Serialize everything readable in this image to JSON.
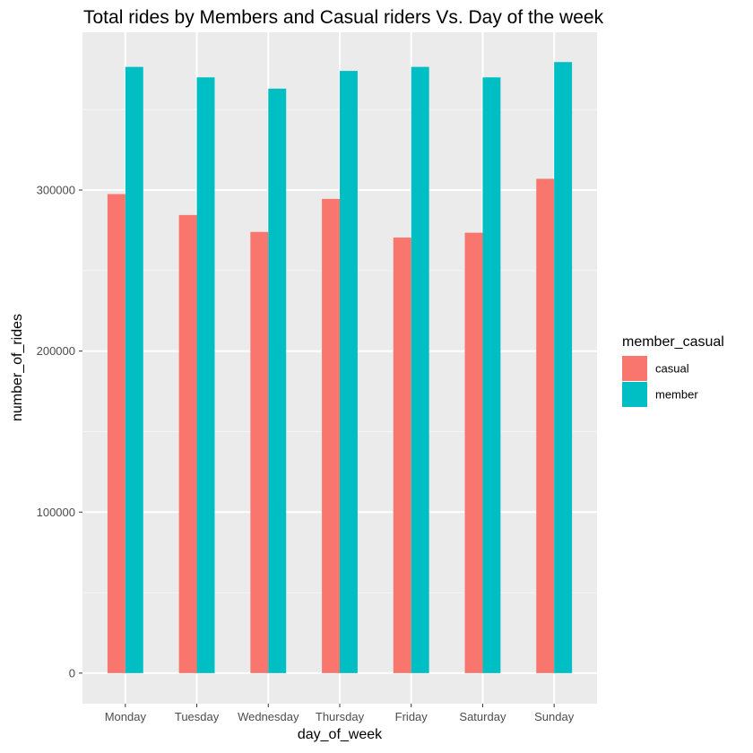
{
  "chart_data": {
    "type": "bar",
    "title": "Total rides by Members and Casual riders Vs. Day of the week",
    "xlabel": "day_of_week",
    "ylabel": "number_of_rides",
    "categories": [
      "Monday",
      "Tuesday",
      "Wednesday",
      "Thursday",
      "Friday",
      "Saturday",
      "Sunday"
    ],
    "series": [
      {
        "name": "casual",
        "color": "#F8766D",
        "values": [
          297500,
          284500,
          274000,
          294500,
          270500,
          273500,
          307000
        ]
      },
      {
        "name": "member",
        "color": "#00BFC4",
        "values": [
          376500,
          370000,
          363000,
          374000,
          376500,
          370000,
          379500
        ]
      }
    ],
    "y_ticks": [
      0,
      100000,
      200000,
      300000
    ],
    "y_tick_labels": [
      "0",
      "100000",
      "200000",
      "300000"
    ],
    "ylim": [
      -19000,
      398000
    ],
    "grid": true,
    "legend": {
      "title": "member_casual",
      "position": "right"
    },
    "colors": {
      "panel_background": "#EBEBEB",
      "grid_major": "#FFFFFF",
      "grid_minor": "#F5F5F5"
    }
  }
}
